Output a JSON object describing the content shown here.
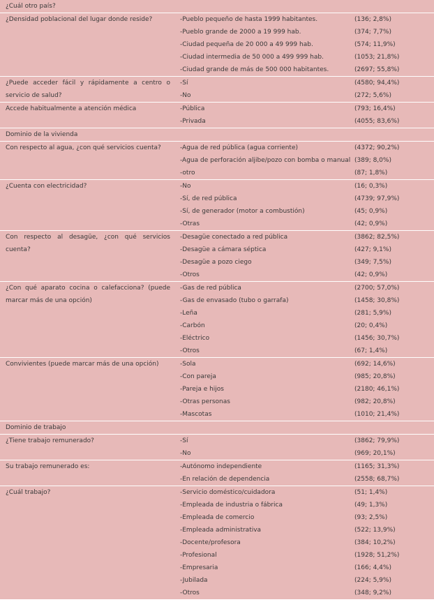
{
  "table": {
    "items": [
      {
        "heading": "¿Cuál otro país?"
      },
      {
        "question": "¿Densidad poblacional del lugar donde reside?",
        "options": [
          {
            "label": "-Pueblo pequeño de hasta 1999 habitantes.",
            "value": "(136; 2,8%)"
          },
          {
            "label": "-Pueblo grande de 2000 a 19 999 hab.",
            "value": "(374; 7,7%)"
          },
          {
            "label": "-Ciudad pequeña de 20 000 a 49 999 hab.",
            "value": "(574; 11,9%)"
          },
          {
            "label": "-Ciudad intermedia de 50 000 a 499 999 hab.",
            "value": "(1053; 21,8%)"
          },
          {
            "label": "-Ciudad grande de más de 500 000 habitantes.",
            "value": "(2697; 55,8%)"
          }
        ]
      },
      {
        "question": "¿Puede acceder fácil y rápidamente a centro o servicio de salud?",
        "options": [
          {
            "label": "-Sí",
            "value": "(4580; 94,4%)"
          },
          {
            "label": "-No",
            "value": "(272; 5,6%)"
          }
        ]
      },
      {
        "question": "Accede habitualmente a atención médica",
        "options": [
          {
            "label": "-Pública",
            "value": "(793; 16,4%)"
          },
          {
            "label": "-Privada",
            "value": "(4055; 83,6%)"
          }
        ]
      },
      {
        "heading": "Dominio de la vivienda"
      },
      {
        "question": "Con respecto al agua, ¿con qué servicios cuenta?",
        "options": [
          {
            "label": "-Agua de red pública (agua corriente)",
            "value": "(4372; 90,2%)"
          },
          {
            "label": "-Agua de perforación aljibe/pozo con bomba o manual",
            "value": "(389; 8,0%)"
          },
          {
            "label": "-otro",
            "value": "(87; 1,8%)"
          }
        ]
      },
      {
        "question": "¿Cuenta con electricidad?",
        "options": [
          {
            "label": "-No",
            "value": "(16; 0,3%)"
          },
          {
            "label": "-Sí, de red pública",
            "value": "(4739; 97,9%)"
          },
          {
            "label": "-Sí, de generador (motor a combustión)",
            "value": "(45; 0,9%)"
          },
          {
            "label": "-Otras",
            "value": "(42; 0,9%)"
          }
        ]
      },
      {
        "question": "Con respecto al desagüe, ¿con qué servicios cuenta?",
        "options": [
          {
            "label": "-Desagüe conectado a red pública",
            "value": "(3862; 82,5%)"
          },
          {
            "label": "-Desagüe a cámara séptica",
            "value": "(427; 9,1%)"
          },
          {
            "label": "-Desagüe a pozo ciego",
            "value": "(349; 7,5%)"
          },
          {
            "label": "-Otros",
            "value": "(42; 0,9%)"
          }
        ]
      },
      {
        "question": "¿Con qué aparato cocina o calefacciona? (puede marcar más de una opción)",
        "options": [
          {
            "label": "-Gas de red pública",
            "value": "(2700; 57,0%)"
          },
          {
            "label": "-Gas de envasado (tubo o garrafa)",
            "value": "(1458; 30,8%)"
          },
          {
            "label": "-Leña",
            "value": "(281; 5,9%)"
          },
          {
            "label": "-Carbón",
            "value": "(20; 0,4%)"
          },
          {
            "label": "-Eléctrico",
            "value": "(1456; 30,7%)"
          },
          {
            "label": "-Otros",
            "value": "(67; 1,4%)"
          }
        ]
      },
      {
        "question": "Convivientes (puede marcar más de una opción)",
        "options": [
          {
            "label": "-Sola",
            "value": "(692; 14,6%)"
          },
          {
            "label": "-Con pareja",
            "value": "(985; 20,8%)"
          },
          {
            "label": "-Pareja e hijos",
            "value": "(2180; 46,1%)"
          },
          {
            "label": "-Otras personas",
            "value": "(982; 20,8%)"
          },
          {
            "label": "-Mascotas",
            "value": "(1010; 21,4%)"
          }
        ]
      },
      {
        "heading": "Dominio de trabajo"
      },
      {
        "question": "¿Tiene trabajo remunerado?",
        "options": [
          {
            "label": "-Sí",
            "value": "(3862; 79,9%)"
          },
          {
            "label": "-No",
            "value": "(969; 20,1%)"
          }
        ]
      },
      {
        "question": "Su trabajo remunerado es:",
        "options": [
          {
            "label": "-Autónomo independiente",
            "value": "(1165; 31,3%)"
          },
          {
            "label": "-En relación de dependencia",
            "value": "(2558; 68,7%)"
          }
        ]
      },
      {
        "question": "¿Cuál trabajo?",
        "options": [
          {
            "label": "-Servicio doméstico/cuidadora",
            "value": "(51; 1,4%)"
          },
          {
            "label": "-Empleada de industria o fábrica",
            "value": "(49; 1,3%)"
          },
          {
            "label": "-Empleada de comercio",
            "value": "(93; 2,5%)"
          },
          {
            "label": "-Empleada administrativa",
            "value": "(522; 13,9%)"
          },
          {
            "label": "-Docente/profesora",
            "value": "(384; 10,2%)"
          },
          {
            "label": "-Profesional",
            "value": "(1928; 51,2%)"
          },
          {
            "label": "-Empresaria",
            "value": "(166; 4,4%)"
          },
          {
            "label": "-Jubilada",
            "value": "(224; 5,9%)"
          },
          {
            "label": "-Otros",
            "value": "(348; 9,2%)"
          }
        ]
      }
    ]
  }
}
